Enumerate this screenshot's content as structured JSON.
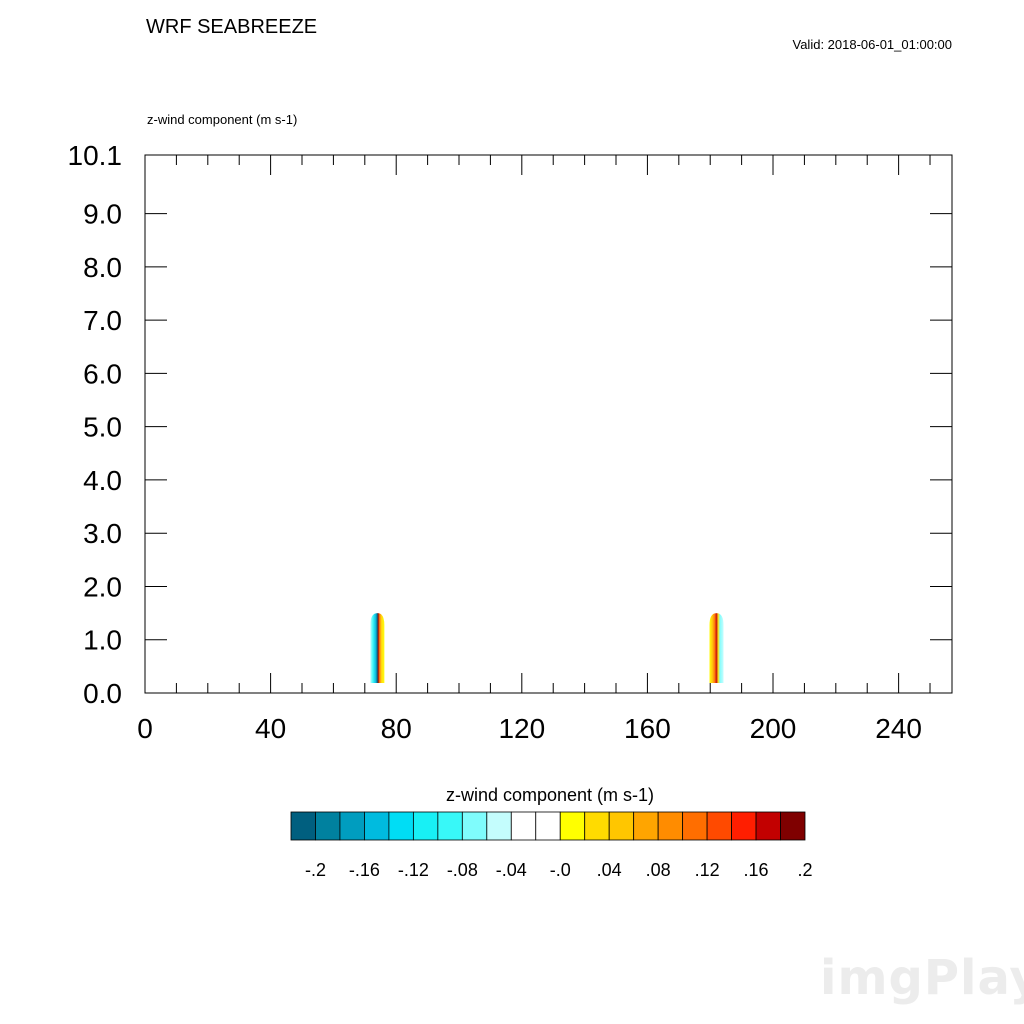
{
  "header": {
    "title": "WRF SEABREEZE",
    "valid": "Valid: 2018-06-01_01:00:00",
    "field_label": "z-wind component   (m s-1)"
  },
  "watermark": "imgPlay",
  "chart_data": {
    "type": "heatmap",
    "field": "z-wind component",
    "units": "m s-1",
    "x_ticks": [
      0,
      40,
      80,
      120,
      160,
      200,
      240
    ],
    "x_range": [
      0,
      257
    ],
    "y_ticks": [
      "0.0",
      "1.0",
      "2.0",
      "3.0",
      "4.0",
      "5.0",
      "6.0",
      "7.0",
      "8.0",
      "9.0",
      "10.1"
    ],
    "y_range": [
      0,
      10.1
    ],
    "features": [
      {
        "name": "western sea-breeze front",
        "x_center": 74,
        "y_top": 1.5,
        "pattern": "negative (blue) on west side, positive (red/yellow) on east side"
      },
      {
        "name": "eastern sea-breeze front",
        "x_center": 182,
        "y_top": 1.5,
        "pattern": "positive (red/yellow) on west side, negative (blue) on east side"
      }
    ],
    "colorbar": {
      "title": "z-wind component  (m s-1)",
      "colors": [
        "#005f7f",
        "#00819f",
        "#009dbf",
        "#00bbdf",
        "#00ddf5",
        "#18f0f5",
        "#38f8f8",
        "#7ffcfc",
        "#c4fdfd",
        "#ffffff",
        "#ffffff",
        "#ffff00",
        "#ffdb00",
        "#ffc600",
        "#ffa500",
        "#ff8c00",
        "#ff6e00",
        "#ff4a00",
        "#ff1e00",
        "#c20000",
        "#7f0000"
      ],
      "labels": [
        "-.2",
        "-.16",
        "-.12",
        "-.08",
        "-.04",
        "-.0",
        ".04",
        ".08",
        ".12",
        ".16",
        ".2"
      ]
    }
  }
}
